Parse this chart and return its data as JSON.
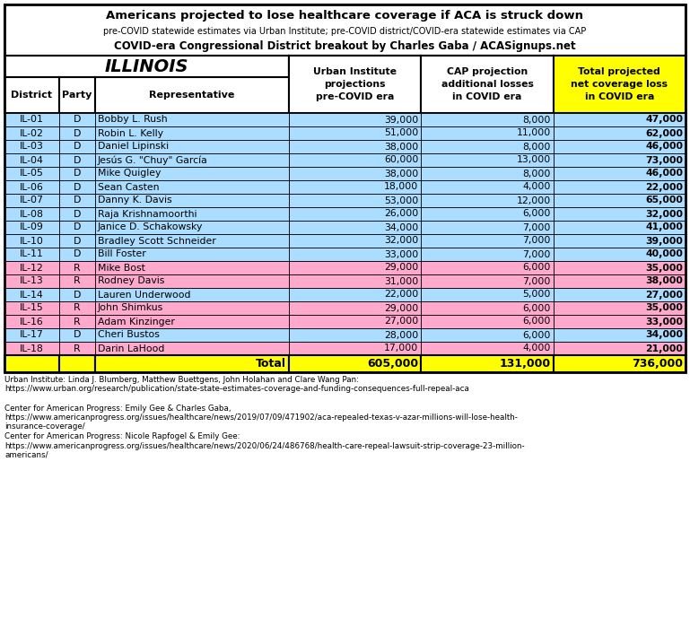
{
  "title1": "Americans projected to lose healthcare coverage if ACA is struck down",
  "title2": "pre-COVID statewide estimates via Urban Institute; pre-COVID district/COVID-era statewide estimates via CAP",
  "title3": "COVID-era Congressional District breakout by Charles Gaba / ACASignups.net",
  "state": "ILLINOIS",
  "col_headers": [
    "District",
    "Party",
    "Representative",
    "Urban Institute\nprojections\npre-COVID era",
    "CAP projection\nadditional losses\nin COVID era",
    "Total projected\nnet coverage loss\nin COVID era"
  ],
  "rows": [
    [
      "IL-01",
      "D",
      "Bobby L. Rush",
      "39,000",
      "8,000",
      "47,000"
    ],
    [
      "IL-02",
      "D",
      "Robin L. Kelly",
      "51,000",
      "11,000",
      "62,000"
    ],
    [
      "IL-03",
      "D",
      "Daniel Lipinski",
      "38,000",
      "8,000",
      "46,000"
    ],
    [
      "IL-04",
      "D",
      "Jesús G. \"Chuy\" García",
      "60,000",
      "13,000",
      "73,000"
    ],
    [
      "IL-05",
      "D",
      "Mike Quigley",
      "38,000",
      "8,000",
      "46,000"
    ],
    [
      "IL-06",
      "D",
      "Sean Casten",
      "18,000",
      "4,000",
      "22,000"
    ],
    [
      "IL-07",
      "D",
      "Danny K. Davis",
      "53,000",
      "12,000",
      "65,000"
    ],
    [
      "IL-08",
      "D",
      "Raja Krishnamoorthi",
      "26,000",
      "6,000",
      "32,000"
    ],
    [
      "IL-09",
      "D",
      "Janice D. Schakowsky",
      "34,000",
      "7,000",
      "41,000"
    ],
    [
      "IL-10",
      "D",
      "Bradley Scott Schneider",
      "32,000",
      "7,000",
      "39,000"
    ],
    [
      "IL-11",
      "D",
      "Bill Foster",
      "33,000",
      "7,000",
      "40,000"
    ],
    [
      "IL-12",
      "R",
      "Mike Bost",
      "29,000",
      "6,000",
      "35,000"
    ],
    [
      "IL-13",
      "R",
      "Rodney Davis",
      "31,000",
      "7,000",
      "38,000"
    ],
    [
      "IL-14",
      "D",
      "Lauren Underwood",
      "22,000",
      "5,000",
      "27,000"
    ],
    [
      "IL-15",
      "R",
      "John Shimkus",
      "29,000",
      "6,000",
      "35,000"
    ],
    [
      "IL-16",
      "R",
      "Adam Kinzinger",
      "27,000",
      "6,000",
      "33,000"
    ],
    [
      "IL-17",
      "D",
      "Cheri Bustos",
      "28,000",
      "6,000",
      "34,000"
    ],
    [
      "IL-18",
      "R",
      "Darin LaHood",
      "17,000",
      "4,000",
      "21,000"
    ]
  ],
  "total_row": [
    "",
    "",
    "Total",
    "605,000",
    "131,000",
    "736,000"
  ],
  "footnotes": [
    "Urban Institute: Linda J. Blumberg, Matthew Buettgens, John Holahan and Clare Wang Pan:",
    "https://www.urban.org/research/publication/state-state-estimates-coverage-and-funding-consequences-full-repeal-aca",
    " ",
    "Center for American Progress: Emily Gee & Charles Gaba,",
    "https://www.americanprogress.org/issues/healthcare/news/2019/07/09/471902/aca-repealed-texas-v-azar-millions-will-lose-health-",
    "insurance-coverage/",
    "Center for American Progress: Nicole Rapfogel & Emily Gee:",
    "https://www.americanprogress.org/issues/healthcare/news/2020/06/24/486768/health-care-repeal-lawsuit-strip-coverage-23-million-",
    "americans/"
  ],
  "color_D": "#aaddff",
  "color_R": "#ffaacc",
  "color_total_bg": "#ffff00",
  "color_last_col_header_bg": "#ffff00"
}
